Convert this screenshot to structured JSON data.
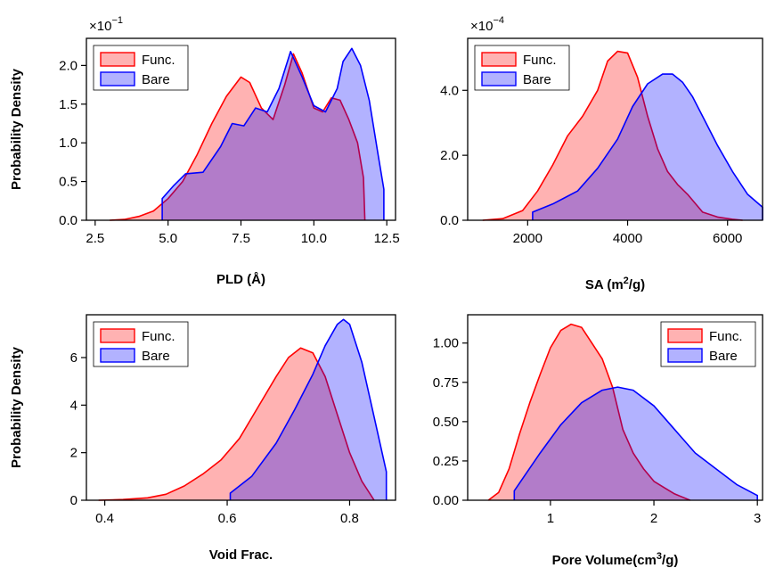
{
  "colors": {
    "func_fill": "#ff0000",
    "func_line": "#ff0000",
    "bare_fill": "#0000ff",
    "bare_line": "#0000ff",
    "fill_opacity": 0.3
  },
  "shared_ylabel": "Probability Density",
  "chart_data": [
    {
      "type": "area",
      "panel": "PLD",
      "xlabel": "PLD (Å)",
      "ylabel": "Probability Density",
      "scale_factor": {
        "base": "×10",
        "exp": "−1"
      },
      "xlim": [
        2.2,
        12.8
      ],
      "ylim": [
        0,
        2.35
      ],
      "xticks": [
        2.5,
        5.0,
        7.5,
        10.0,
        12.5
      ],
      "xtick_labels": [
        "2.5",
        "5.0",
        "7.5",
        "10.0",
        "12.5"
      ],
      "yticks": [
        0,
        0.5,
        1.0,
        1.5,
        2.0
      ],
      "ytick_labels": [
        "0.0",
        "0.5",
        "1.0",
        "1.5",
        "2.0"
      ],
      "legend": {
        "placement": "top-left",
        "entries": [
          "Func.",
          "Bare"
        ]
      },
      "series": [
        {
          "name": "Func.",
          "x": [
            3.0,
            3.5,
            4.0,
            4.5,
            5.0,
            5.5,
            6.0,
            6.5,
            7.0,
            7.5,
            7.8,
            8.2,
            8.6,
            9.0,
            9.3,
            9.6,
            10.0,
            10.3,
            10.6,
            10.9,
            11.2,
            11.5,
            11.7,
            11.75
          ],
          "y": [
            0.0,
            0.01,
            0.05,
            0.12,
            0.28,
            0.5,
            0.85,
            1.25,
            1.6,
            1.85,
            1.78,
            1.45,
            1.3,
            1.75,
            2.15,
            1.9,
            1.45,
            1.4,
            1.58,
            1.55,
            1.3,
            1.0,
            0.55,
            0.0
          ]
        },
        {
          "name": "Bare",
          "x": [
            4.8,
            4.8,
            5.2,
            5.6,
            6.2,
            6.8,
            7.2,
            7.6,
            8.0,
            8.4,
            8.8,
            9.2,
            9.6,
            10.0,
            10.4,
            10.8,
            11.0,
            11.3,
            11.6,
            11.9,
            12.2,
            12.4,
            12.4
          ],
          "y": [
            0.0,
            0.28,
            0.45,
            0.6,
            0.62,
            0.95,
            1.25,
            1.22,
            1.45,
            1.4,
            1.7,
            2.18,
            1.85,
            1.48,
            1.4,
            1.7,
            2.05,
            2.22,
            2.0,
            1.55,
            0.85,
            0.4,
            0.0
          ]
        }
      ]
    },
    {
      "type": "area",
      "panel": "SA",
      "xlabel_main": "SA (m",
      "xlabel_sup": "2",
      "xlabel_end": "/g)",
      "scale_factor": {
        "base": "×10",
        "exp": "−4"
      },
      "xlim": [
        800,
        6700
      ],
      "ylim": [
        0,
        5.6
      ],
      "xticks": [
        2000,
        4000,
        6000
      ],
      "xtick_labels": [
        "2000",
        "4000",
        "6000"
      ],
      "yticks": [
        0,
        2,
        4
      ],
      "ytick_labels": [
        "0.0",
        "2.0",
        "4.0"
      ],
      "legend": {
        "placement": "top-left",
        "entries": [
          "Func.",
          "Bare"
        ]
      },
      "series": [
        {
          "name": "Func.",
          "x": [
            1100,
            1500,
            1900,
            2200,
            2500,
            2800,
            3100,
            3400,
            3600,
            3800,
            4000,
            4200,
            4400,
            4600,
            4800,
            5000,
            5200,
            5500,
            5800,
            6100,
            6300
          ],
          "y": [
            0.0,
            0.05,
            0.3,
            0.9,
            1.7,
            2.6,
            3.2,
            4.0,
            4.9,
            5.2,
            5.15,
            4.4,
            3.2,
            2.2,
            1.5,
            1.1,
            0.8,
            0.25,
            0.1,
            0.03,
            0.0
          ]
        },
        {
          "name": "Bare",
          "x": [
            2100,
            2100,
            2500,
            3000,
            3400,
            3800,
            4100,
            4400,
            4700,
            4900,
            5100,
            5300,
            5500,
            5800,
            6100,
            6400,
            6700,
            6700
          ],
          "y": [
            0.0,
            0.25,
            0.5,
            0.9,
            1.6,
            2.5,
            3.5,
            4.2,
            4.5,
            4.5,
            4.25,
            3.8,
            3.2,
            2.3,
            1.5,
            0.8,
            0.4,
            0.0
          ]
        }
      ]
    },
    {
      "type": "area",
      "panel": "Void Frac.",
      "xlabel": "Void Frac.",
      "ylabel": "Probability Density",
      "xlim": [
        0.37,
        0.875
      ],
      "ylim": [
        0,
        7.8
      ],
      "xticks": [
        0.4,
        0.6,
        0.8
      ],
      "xtick_labels": [
        "0.4",
        "0.6",
        "0.8"
      ],
      "yticks": [
        0,
        2,
        4,
        6
      ],
      "ytick_labels": [
        "0",
        "2",
        "4",
        "6"
      ],
      "legend": {
        "placement": "top-left",
        "entries": [
          "Func.",
          "Bare"
        ]
      },
      "series": [
        {
          "name": "Func.",
          "x": [
            0.39,
            0.43,
            0.47,
            0.5,
            0.53,
            0.56,
            0.59,
            0.62,
            0.65,
            0.68,
            0.7,
            0.72,
            0.74,
            0.76,
            0.78,
            0.8,
            0.82,
            0.84
          ],
          "y": [
            0.0,
            0.03,
            0.1,
            0.25,
            0.6,
            1.1,
            1.7,
            2.6,
            3.9,
            5.2,
            6.0,
            6.4,
            6.2,
            5.2,
            3.6,
            2.0,
            0.8,
            0.0
          ]
        },
        {
          "name": "Bare",
          "x": [
            0.605,
            0.605,
            0.64,
            0.68,
            0.71,
            0.74,
            0.76,
            0.78,
            0.79,
            0.8,
            0.82,
            0.84,
            0.86,
            0.86
          ],
          "y": [
            0.0,
            0.3,
            1.0,
            2.4,
            3.8,
            5.3,
            6.5,
            7.4,
            7.6,
            7.4,
            5.8,
            3.5,
            1.2,
            0.0
          ]
        }
      ]
    },
    {
      "type": "area",
      "panel": "Pore Volume",
      "xlabel_main": "Pore Volume(cm",
      "xlabel_sup": "3",
      "xlabel_end": "/g)",
      "xlim": [
        0.2,
        3.05
      ],
      "ylim": [
        0,
        1.18
      ],
      "xticks": [
        1,
        2,
        3
      ],
      "xtick_labels": [
        "1",
        "2",
        "3"
      ],
      "yticks": [
        0,
        0.25,
        0.5,
        0.75,
        1.0
      ],
      "ytick_labels": [
        "0.00",
        "0.25",
        "0.50",
        "0.75",
        "1.00"
      ],
      "legend": {
        "placement": "top-right",
        "entries": [
          "Func.",
          "Bare"
        ]
      },
      "series": [
        {
          "name": "Func.",
          "x": [
            0.4,
            0.5,
            0.6,
            0.7,
            0.8,
            0.9,
            1.0,
            1.1,
            1.2,
            1.3,
            1.4,
            1.5,
            1.6,
            1.7,
            1.8,
            1.9,
            2.0,
            2.1,
            2.2,
            2.35
          ],
          "y": [
            0.0,
            0.05,
            0.2,
            0.42,
            0.62,
            0.8,
            0.97,
            1.08,
            1.12,
            1.1,
            1.0,
            0.9,
            0.72,
            0.45,
            0.3,
            0.2,
            0.12,
            0.08,
            0.04,
            0.0
          ]
        },
        {
          "name": "Bare",
          "x": [
            0.65,
            0.65,
            0.9,
            1.1,
            1.3,
            1.5,
            1.65,
            1.8,
            2.0,
            2.2,
            2.4,
            2.6,
            2.8,
            3.0,
            3.0
          ],
          "y": [
            0.0,
            0.06,
            0.3,
            0.48,
            0.62,
            0.7,
            0.72,
            0.7,
            0.6,
            0.45,
            0.3,
            0.2,
            0.1,
            0.03,
            0.0
          ]
        }
      ]
    }
  ]
}
